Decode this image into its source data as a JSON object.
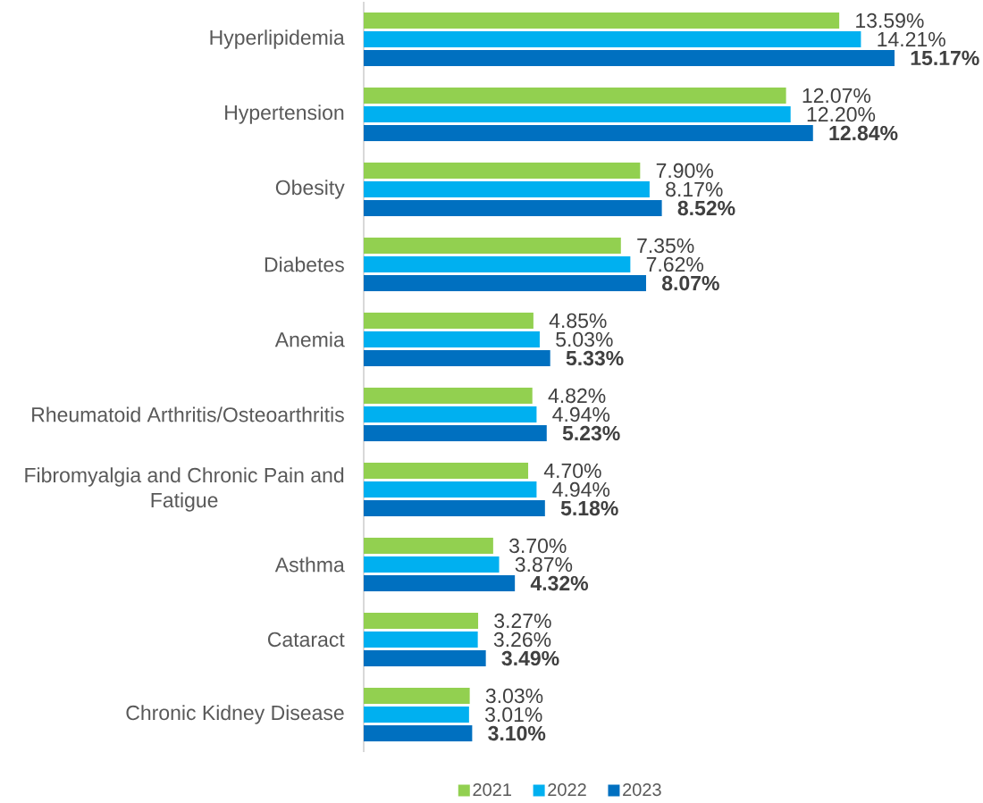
{
  "chart_data": {
    "type": "bar",
    "orientation": "horizontal",
    "categories": [
      "Hyperlipidemia",
      "Hypertension",
      "Obesity",
      "Diabetes",
      "Anemia",
      "Rheumatoid Arthritis/Osteoarthritis",
      "Fibromyalgia and Chronic Pain and Fatigue",
      "Asthma",
      "Cataract",
      "Chronic Kidney Disease"
    ],
    "series": [
      {
        "name": "2021",
        "color": "#92d050",
        "values": [
          13.59,
          12.07,
          7.9,
          7.35,
          4.85,
          4.82,
          4.7,
          3.7,
          3.27,
          3.03
        ],
        "value_labels": [
          "13.59%",
          "12.07%",
          "7.90%",
          "7.35%",
          "4.85%",
          "4.82%",
          "4.70%",
          "3.70%",
          "3.27%",
          "3.03%"
        ]
      },
      {
        "name": "2022",
        "color": "#00b0f0",
        "values": [
          14.21,
          12.2,
          8.17,
          7.62,
          5.03,
          4.94,
          4.94,
          3.87,
          3.26,
          3.01
        ],
        "value_labels": [
          "14.21%",
          "12.20%",
          "8.17%",
          "7.62%",
          "5.03%",
          "4.94%",
          "4.94%",
          "3.87%",
          "3.26%",
          "3.01%"
        ]
      },
      {
        "name": "2023",
        "color": "#0070c0",
        "values": [
          15.17,
          12.84,
          8.52,
          8.07,
          5.33,
          5.23,
          5.18,
          4.32,
          3.49,
          3.1
        ],
        "value_labels": [
          "15.17%",
          "12.84%",
          "8.52%",
          "8.07%",
          "5.33%",
          "5.23%",
          "5.18%",
          "4.32%",
          "3.49%",
          "3.10%"
        ]
      }
    ],
    "legend": "bottom"
  }
}
